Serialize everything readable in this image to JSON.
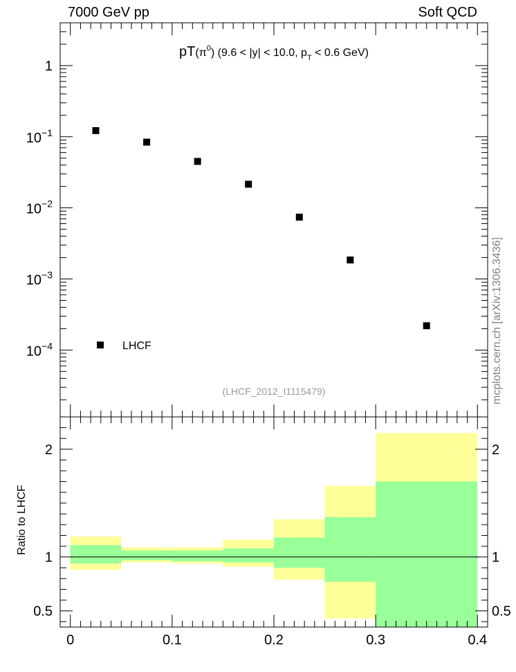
{
  "header": {
    "left": "7000 GeV pp",
    "right": "Soft QCD"
  },
  "side_label": "mcplots.cern.ch [arXiv:1306.3436]",
  "chart_data": [
    {
      "type": "scatter",
      "title_main": "pT",
      "title_particle": "π",
      "title_particle_sup": "0",
      "title_cut1": "(9.6 < |y| < 10.0, p",
      "title_cut_sub": "T",
      "title_cut2": " < 0.6 GeV)",
      "analysis_label": "(LHCF_2012_I1115479)",
      "yscale": "log",
      "xlim": [
        -0.01,
        0.41
      ],
      "ylim": [
        1.15e-05,
        4.0
      ],
      "ytick_values": [
        1,
        0.1,
        0.01,
        0.001,
        0.0001
      ],
      "ytick_labels": [
        {
          "base": "1",
          "exp": ""
        },
        {
          "base": "10",
          "exp": "−1"
        },
        {
          "base": "10",
          "exp": "−2"
        },
        {
          "base": "10",
          "exp": "−3"
        },
        {
          "base": "10",
          "exp": "−4"
        }
      ],
      "legend": {
        "label": "LHCF",
        "placement": "lower-left"
      },
      "series": [
        {
          "name": "LHCF",
          "marker": "square",
          "color": "#000000",
          "x": [
            0.025,
            0.075,
            0.125,
            0.175,
            0.225,
            0.275,
            0.35
          ],
          "y": [
            0.122,
            0.084,
            0.045,
            0.0215,
            0.0074,
            0.00185,
            0.00022
          ]
        }
      ]
    },
    {
      "type": "area",
      "ylabel": "Ratio to LHCF",
      "xlim": [
        -0.01,
        0.41
      ],
      "ylim": [
        0.35,
        2.3
      ],
      "reference_line": 1,
      "yticks": [
        0.5,
        1,
        2
      ],
      "ytick_labels": [
        "0.5",
        "1",
        "2"
      ],
      "xticks": [
        0,
        0.1,
        0.2,
        0.3,
        0.4
      ],
      "xtick_labels": [
        "0",
        "0.1",
        "0.2",
        "0.3",
        "0.4"
      ],
      "bins": [
        [
          0.0,
          0.05
        ],
        [
          0.05,
          0.1
        ],
        [
          0.1,
          0.15
        ],
        [
          0.15,
          0.2
        ],
        [
          0.2,
          0.25
        ],
        [
          0.25,
          0.3
        ],
        [
          0.3,
          0.4
        ]
      ],
      "band_outer": {
        "color": "#ffff99",
        "low": [
          0.88,
          0.95,
          0.94,
          0.91,
          0.79,
          0.43,
          0.35
        ],
        "high": [
          1.19,
          1.09,
          1.09,
          1.16,
          1.35,
          1.66,
          2.15
        ]
      },
      "band_inner": {
        "color": "#99ff99",
        "low": [
          0.94,
          0.97,
          0.96,
          0.95,
          0.9,
          0.77,
          0.35
        ],
        "high": [
          1.11,
          1.06,
          1.06,
          1.08,
          1.18,
          1.37,
          1.7
        ]
      }
    }
  ]
}
